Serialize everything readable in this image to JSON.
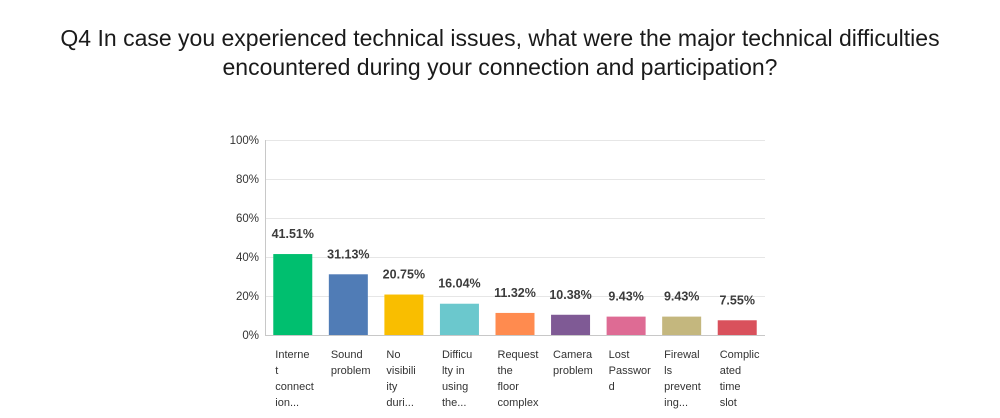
{
  "title_lines": [
    "Q4 In case you experienced technical issues, what were the major technical difficulties",
    "encountered during your connection and participation?"
  ],
  "chart_data": {
    "type": "bar",
    "title": "Q4 In case you experienced technical issues, what were the major technical difficulties encountered during your connection and participation?",
    "categories": [
      "Internet connection...",
      "Sound problem",
      "No visibility duri...",
      "Difficulty in using the...",
      "Request the floor complex",
      "Camera problem",
      "Lost Password",
      "Firewalls preventing...",
      "Complicated time slot"
    ],
    "category_lines": [
      [
        "Interne",
        "t",
        "connect",
        "ion..."
      ],
      [
        "Sound",
        "problem"
      ],
      [
        "No",
        "visibili",
        "ity",
        "duri..."
      ],
      [
        "Difficu",
        "lty in",
        "using",
        "the..."
      ],
      [
        "Request",
        "the",
        "floor",
        "complex"
      ],
      [
        "Camera",
        "problem"
      ],
      [
        "Lost",
        "Passwor",
        "d"
      ],
      [
        "Firewal",
        "ls",
        "prevent",
        "ing..."
      ],
      [
        "Complic",
        "ated",
        "time",
        "slot"
      ]
    ],
    "values": [
      41.51,
      31.13,
      20.75,
      16.04,
      11.32,
      10.38,
      9.43,
      9.43,
      7.55
    ],
    "value_labels": [
      "41.51%",
      "31.13%",
      "20.75%",
      "16.04%",
      "11.32%",
      "10.38%",
      "9.43%",
      "9.43%",
      "7.55%"
    ],
    "colors": [
      "#00bf6f",
      "#507cb6",
      "#f9be00",
      "#6bc8cd",
      "#ff8b4f",
      "#7f5a95",
      "#de6b94",
      "#c4b77e",
      "#d9515c"
    ],
    "yticks": [
      "0%",
      "20%",
      "40%",
      "60%",
      "80%",
      "100%"
    ],
    "ylim": [
      0,
      100
    ],
    "grid": true,
    "legend": "none"
  }
}
